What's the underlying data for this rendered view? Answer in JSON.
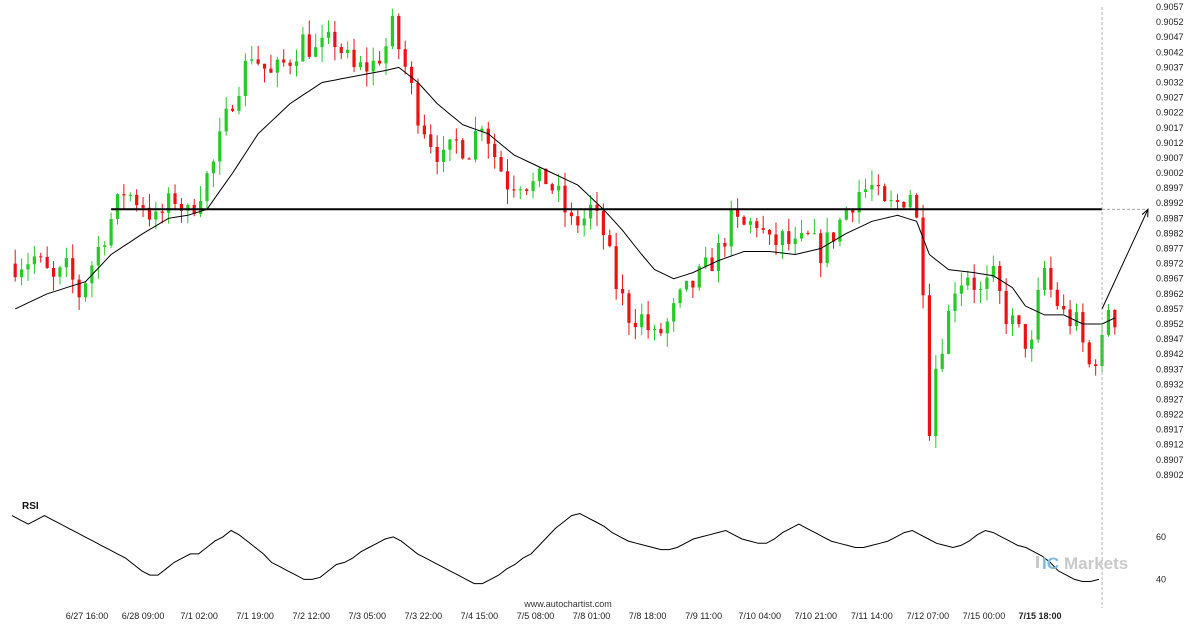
{
  "chart_data": {
    "type": "candlestick",
    "title": "",
    "price_axis": {
      "min": 0.8897,
      "max": 0.9057,
      "tick_labels": [
        "0.9057",
        "0.9052",
        "0.9047",
        "0.9042",
        "0.9037",
        "0.9032",
        "0.9027",
        "0.9022",
        "0.9017",
        "0.9012",
        "0.9007",
        "0.9002",
        "0.8997",
        "0.8992",
        "0.8987",
        "0.8982",
        "0.8977",
        "0.8972",
        "0.8967",
        "0.8962",
        "0.8957",
        "0.8952",
        "0.8947",
        "0.8942",
        "0.8937",
        "0.8932",
        "0.8927",
        "0.8922",
        "0.8917",
        "0.8912",
        "0.8907",
        "0.8902"
      ]
    },
    "time_axis": {
      "tick_labels": [
        "6/27 16:00",
        "6/28 09:00",
        "7/1 02:00",
        "7/1 19:00",
        "7/2 12:00",
        "7/3 05:00",
        "7/3 22:00",
        "7/4 15:00",
        "7/5 08:00",
        "7/8 01:00",
        "7/8 18:00",
        "7/9 11:00",
        "7/10 04:00",
        "7/10 21:00",
        "7/11 14:00",
        "7/12 07:00",
        "7/15 00:00",
        "7/15 18:00"
      ],
      "highlight_label": "7/15 18:00"
    },
    "price_path": [
      [
        0,
        0.8972
      ],
      [
        3,
        0.8974
      ],
      [
        6,
        0.8966
      ],
      [
        8,
        0.897
      ],
      [
        10,
        0.8962
      ],
      [
        14,
        0.8982
      ],
      [
        17,
        0.8996
      ],
      [
        20,
        0.8992
      ],
      [
        22,
        0.8986
      ],
      [
        25,
        0.8994
      ],
      [
        27,
        0.8988
      ],
      [
        31,
        0.9005
      ],
      [
        34,
        0.9027
      ],
      [
        37,
        0.9042
      ],
      [
        40,
        0.9034
      ],
      [
        43,
        0.904
      ],
      [
        45,
        0.9046
      ],
      [
        47,
        0.9042
      ],
      [
        50,
        0.9046
      ],
      [
        53,
        0.9036
      ],
      [
        56,
        0.9038
      ],
      [
        58,
        0.9044
      ],
      [
        59,
        0.905
      ],
      [
        61,
        0.9037
      ],
      [
        63,
        0.9022
      ],
      [
        65,
        0.9013
      ],
      [
        67,
        0.9006
      ],
      [
        69,
        0.9012
      ],
      [
        71,
        0.901
      ],
      [
        73,
        0.902
      ],
      [
        75,
        0.9008
      ],
      [
        77,
        0.8999
      ],
      [
        79,
        0.9
      ],
      [
        81,
        0.8998
      ],
      [
        83,
        0.9
      ],
      [
        85,
        0.8994
      ],
      [
        87,
        0.8985
      ],
      [
        89,
        0.8987
      ],
      [
        90,
        0.899
      ],
      [
        92,
        0.8982
      ],
      [
        94,
        0.8965
      ],
      [
        96,
        0.8955
      ],
      [
        98,
        0.8954
      ],
      [
        100,
        0.8947
      ],
      [
        102,
        0.8952
      ],
      [
        104,
        0.896
      ],
      [
        106,
        0.8965
      ],
      [
        108,
        0.897
      ],
      [
        110,
        0.8976
      ],
      [
        112,
        0.8986
      ],
      [
        114,
        0.8984
      ],
      [
        116,
        0.8986
      ],
      [
        118,
        0.8978
      ],
      [
        120,
        0.898
      ],
      [
        122,
        0.8977
      ],
      [
        124,
        0.898
      ],
      [
        126,
        0.8976
      ],
      [
        128,
        0.8982
      ],
      [
        130,
        0.899
      ],
      [
        132,
        0.8996
      ],
      [
        134,
        0.8997
      ],
      [
        136,
        0.899
      ],
      [
        138,
        0.8992
      ],
      [
        140,
        0.8996
      ],
      [
        141,
        0.8986
      ],
      [
        142,
        0.8966
      ],
      [
        143,
        0.8919
      ],
      [
        144,
        0.8938
      ],
      [
        146,
        0.8955
      ],
      [
        147,
        0.8965
      ],
      [
        149,
        0.8969
      ],
      [
        151,
        0.8962
      ],
      [
        153,
        0.8967
      ],
      [
        155,
        0.8955
      ],
      [
        157,
        0.8949
      ],
      [
        159,
        0.8944
      ],
      [
        160,
        0.896
      ],
      [
        161,
        0.897
      ],
      [
        162,
        0.8963
      ],
      [
        164,
        0.8955
      ],
      [
        166,
        0.8952
      ],
      [
        168,
        0.8938
      ],
      [
        170,
        0.8945
      ],
      [
        171,
        0.8958
      ],
      [
        172,
        0.8954
      ]
    ],
    "moving_average": [
      [
        0,
        0.8957
      ],
      [
        5,
        0.8962
      ],
      [
        11,
        0.8966
      ],
      [
        15,
        0.8975
      ],
      [
        20,
        0.8982
      ],
      [
        24,
        0.8987
      ],
      [
        27,
        0.8988
      ],
      [
        30,
        0.899
      ],
      [
        34,
        0.9002
      ],
      [
        38,
        0.9015
      ],
      [
        43,
        0.9025
      ],
      [
        48,
        0.9032
      ],
      [
        53,
        0.9034
      ],
      [
        58,
        0.9036
      ],
      [
        60,
        0.9037
      ],
      [
        63,
        0.9032
      ],
      [
        66,
        0.9025
      ],
      [
        70,
        0.9018
      ],
      [
        74,
        0.9015
      ],
      [
        78,
        0.9008
      ],
      [
        83,
        0.9003
      ],
      [
        88,
        0.8998
      ],
      [
        92,
        0.899
      ],
      [
        95,
        0.8983
      ],
      [
        98,
        0.8975
      ],
      [
        100,
        0.897
      ],
      [
        103,
        0.8967
      ],
      [
        106,
        0.8969
      ],
      [
        110,
        0.8973
      ],
      [
        114,
        0.8976
      ],
      [
        118,
        0.8976
      ],
      [
        122,
        0.8975
      ],
      [
        126,
        0.8977
      ],
      [
        130,
        0.8982
      ],
      [
        134,
        0.8986
      ],
      [
        138,
        0.8988
      ],
      [
        141,
        0.8986
      ],
      [
        143,
        0.8975
      ],
      [
        146,
        0.897
      ],
      [
        150,
        0.8969
      ],
      [
        153,
        0.8968
      ],
      [
        156,
        0.8964
      ],
      [
        158,
        0.8958
      ],
      [
        161,
        0.8955
      ],
      [
        164,
        0.8955
      ],
      [
        167,
        0.8952
      ],
      [
        170,
        0.8952
      ],
      [
        172,
        0.8954
      ]
    ],
    "bar_count": 172,
    "support_resistance": {
      "price": 0.899,
      "from_bar": 15,
      "to_bar": 170
    },
    "projection": {
      "from_bar": 170,
      "from_price": 0.8957,
      "to_price": 0.899
    },
    "rsi": {
      "label": "RSI",
      "tick_labels": [
        "60",
        "40"
      ],
      "ticks": [
        60,
        40
      ],
      "range": [
        35,
        75
      ],
      "values": [
        70,
        68,
        66,
        68,
        70,
        68,
        66,
        64,
        62,
        60,
        58,
        56,
        54,
        52,
        50,
        47,
        44,
        42,
        42,
        45,
        48,
        50,
        52,
        52,
        55,
        58,
        60,
        63,
        61,
        58,
        55,
        52,
        48,
        46,
        44,
        42,
        40,
        40,
        41,
        44,
        47,
        48,
        50,
        53,
        55,
        57,
        59,
        60,
        58,
        55,
        52,
        50,
        48,
        46,
        44,
        42,
        40,
        38,
        38,
        40,
        42,
        45,
        47,
        50,
        52,
        56,
        60,
        64,
        67,
        70,
        71,
        69,
        67,
        65,
        62,
        60,
        58,
        57,
        56,
        55,
        54,
        54,
        55,
        57,
        59,
        60,
        61,
        62,
        63,
        61,
        59,
        58,
        57,
        57,
        59,
        62,
        64,
        66,
        64,
        62,
        60,
        58,
        57,
        56,
        55,
        55,
        56,
        57,
        58,
        60,
        62,
        63,
        61,
        59,
        57,
        56,
        55,
        56,
        58,
        61,
        63,
        62,
        60,
        58,
        56,
        55,
        53,
        51,
        48,
        44,
        42,
        40,
        39,
        39,
        40
      ],
      "values_start_bar": 0
    },
    "watermark": "www.autochartist.com",
    "brand": {
      "prefix": "IC",
      "name": "Markets"
    },
    "colors": {
      "up": "#22cc22",
      "down": "#ee1111",
      "ma": "#000000",
      "level": "#000000",
      "brand_accent": "#7fb9d8",
      "brand_grey": "#c9c9c9"
    }
  }
}
